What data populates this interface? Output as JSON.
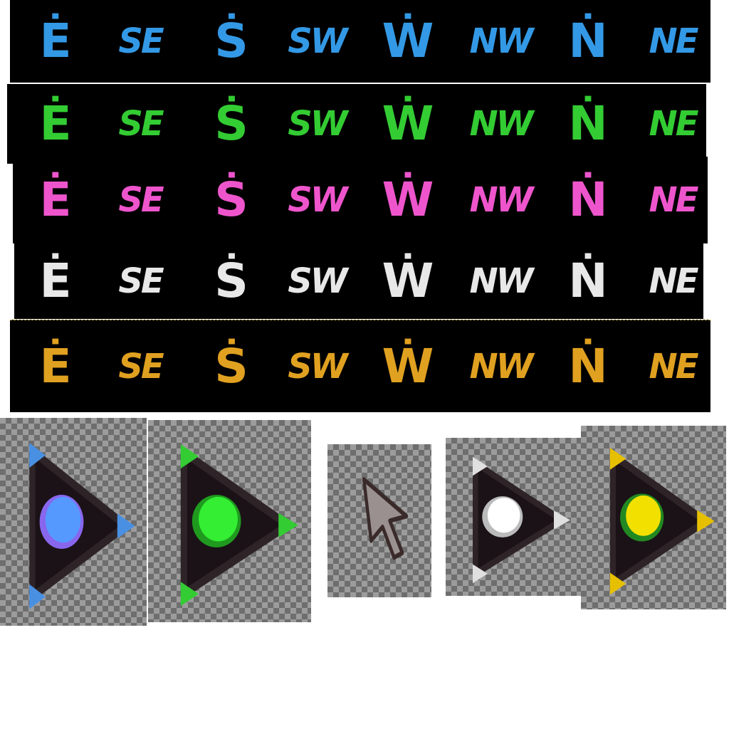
{
  "labels": [
    "Ė",
    "SE",
    "Ṡ",
    "SW",
    "Ẇ",
    "NW",
    "Ṅ",
    "NE"
  ],
  "rows": [
    {
      "id": "blue",
      "color": "#3399e6"
    },
    {
      "id": "green",
      "color": "#33cc33"
    },
    {
      "id": "pink",
      "color": "#ee55cc"
    },
    {
      "id": "white",
      "color": "#e8e8e8"
    },
    {
      "id": "orange",
      "color": "#e0a020"
    }
  ],
  "markers": [
    {
      "id": "blue",
      "tip_color": "#4a90e2",
      "dot_color": "#5599ff",
      "ring_color": "#8866ee"
    },
    {
      "id": "green",
      "tip_color": "#33cc33",
      "dot_color": "#33ee33",
      "ring_color": "#1f9a1f"
    },
    {
      "id": "white",
      "tip_color": "#e0e0e0",
      "dot_color": "#ffffff",
      "ring_color": "#bbbbbb"
    },
    {
      "id": "yellow",
      "tip_color": "#e6c000",
      "dot_color": "#f2e000",
      "ring_color": "#228822"
    }
  ],
  "cursor": {
    "icon": "arrow-cursor-icon",
    "fill": "#9a9090",
    "outline": "#3a2a2a"
  }
}
